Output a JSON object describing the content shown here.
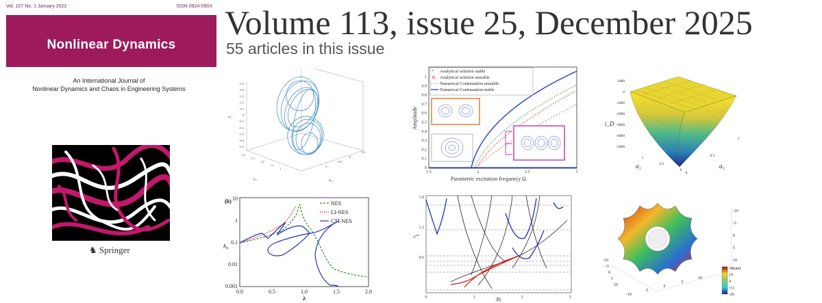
{
  "cover": {
    "vol_line": "Vol. 107 No. 1 January 2022",
    "issn": "ISSN 0924-090X",
    "journal_title": "Nonlinear Dynamics",
    "subtitle_line1": "An International Journal of",
    "subtitle_line2": "Nonlinear Dynamics and Chaos in Engineering Systems",
    "publisher": "Springer",
    "brand_color": "#9d1a5c"
  },
  "issue": {
    "title": "Volume 113, issue 25, December 2025",
    "article_count": "55 articles in this issue"
  },
  "figures": {
    "attractor": {
      "z_label": "φ₁₂",
      "x_label": "ρ₁₂",
      "y_label": "φ₁₃",
      "z_ticks": [
        "0.5",
        "0.4",
        "0.3",
        "0.2",
        "0.1",
        "0",
        "-0.1",
        "-0.2",
        "-0.3",
        "-0.4",
        "-0.5"
      ],
      "x_ticks": [
        "1.4",
        "1.3",
        "1.2",
        "1.1",
        "1"
      ],
      "y_ticks": [
        "0.5",
        "0",
        "-0.5",
        "-1"
      ]
    },
    "amplitude_chart": {
      "legend": [
        "Analytical solution stable",
        "Analytical solution unstable",
        "Numerical Continuation unstable",
        "Numerical Continuation stable"
      ],
      "ylabel": "Amplitude",
      "xlabel": "Parametric excitation frequency Ω",
      "y_ticks": [
        "0",
        "0.1",
        "0.2",
        "0.3",
        "0.4",
        "0.5",
        "0.6",
        "0.7",
        "0.8",
        "0.9",
        "1"
      ],
      "x_ticks": [
        "1.5",
        "2",
        "2.5",
        "3"
      ]
    },
    "surface": {
      "z_label": "i_D",
      "z_ticks": [
        "1000",
        "0",
        "-1000",
        "-2000",
        "-3000",
        "-4000",
        "-5000"
      ],
      "x_label": "α₂",
      "y_label": "α₁",
      "x_ticks": [
        "1",
        "0.5",
        "0"
      ],
      "y_ticks": [
        "0",
        "0.5",
        "1"
      ]
    },
    "nes_chart": {
      "panel_label": "(b)",
      "legend": [
        "NES",
        "LI-NES",
        "CTI-NES"
      ],
      "ylabel": "h₀",
      "xlabel": "λ",
      "y_ticks": [
        "10",
        "1",
        "0.1",
        "0.01",
        "0.001"
      ],
      "x_ticks": [
        "0.0",
        "0.5",
        "1.0",
        "1.5",
        "2.0"
      ]
    },
    "branch_chart": {
      "ylabel": "c*",
      "xlabel": "|B|",
      "y_ticks": [
        "1.8",
        "1.2",
        "0.6"
      ],
      "x_ticks": [
        "0",
        "1",
        "2",
        "3"
      ]
    },
    "gear": {
      "colorbar_title": "34(um)",
      "colorbar_ticks": [
        "34(um)",
        "19",
        "4",
        "-11",
        "-26"
      ],
      "axis_ticks_right": [
        "-10",
        "-5",
        "0",
        "5",
        "10"
      ],
      "axis_ticks_left": [
        "-10",
        "-5",
        "0",
        "5",
        "10"
      ],
      "axis_ticks_bottom": [
        "-10",
        "-5",
        "0",
        "5",
        "10"
      ]
    }
  }
}
